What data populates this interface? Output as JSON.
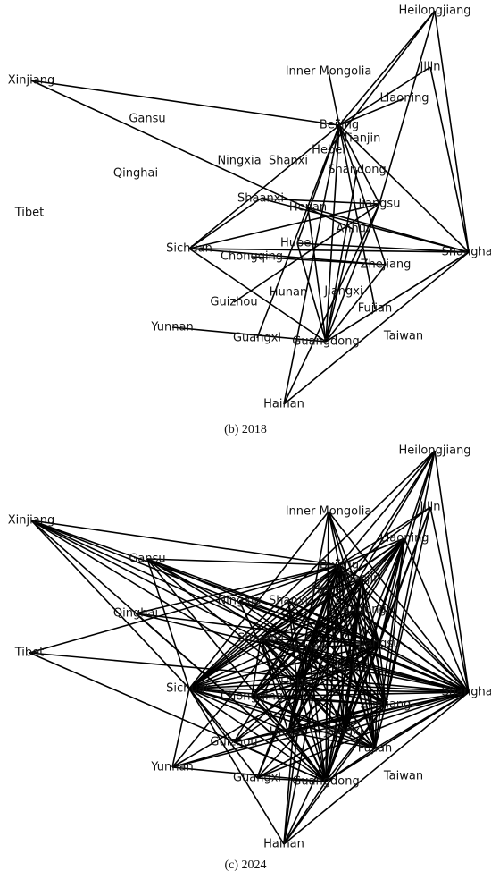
{
  "nodes": [
    {
      "label": "Heilongjiang"
    },
    {
      "label": "Inner Mongolia"
    },
    {
      "label": "Jilin"
    },
    {
      "label": "Xinjiang"
    },
    {
      "label": "Liaoning"
    },
    {
      "label": "Gansu"
    },
    {
      "label": "Beijing"
    },
    {
      "label": "Hebei"
    },
    {
      "label": "Tianjin"
    },
    {
      "label": "Ningxia"
    },
    {
      "label": "Shanxi"
    },
    {
      "label": "Shandong"
    },
    {
      "label": "Qinghai"
    },
    {
      "label": "Tibet"
    },
    {
      "label": "Shaanxi"
    },
    {
      "label": "Henan"
    },
    {
      "label": "Jiangsu"
    },
    {
      "label": "Anhui"
    },
    {
      "label": "Hubei"
    },
    {
      "label": "Sichuan"
    },
    {
      "label": "Chongqing"
    },
    {
      "label": "Shanghai"
    },
    {
      "label": "Zhejiang"
    },
    {
      "label": "Hunan"
    },
    {
      "label": "Jiangxi"
    },
    {
      "label": "Guizhou"
    },
    {
      "label": "Fujian"
    },
    {
      "label": "Yunnan"
    },
    {
      "label": "Guangxi"
    },
    {
      "label": "Guangdong"
    },
    {
      "label": "Taiwan"
    },
    {
      "label": "Hainan"
    }
  ],
  "panels": [
    {
      "caption": "(b) 2018"
    },
    {
      "caption": "(c) 2024"
    }
  ]
}
